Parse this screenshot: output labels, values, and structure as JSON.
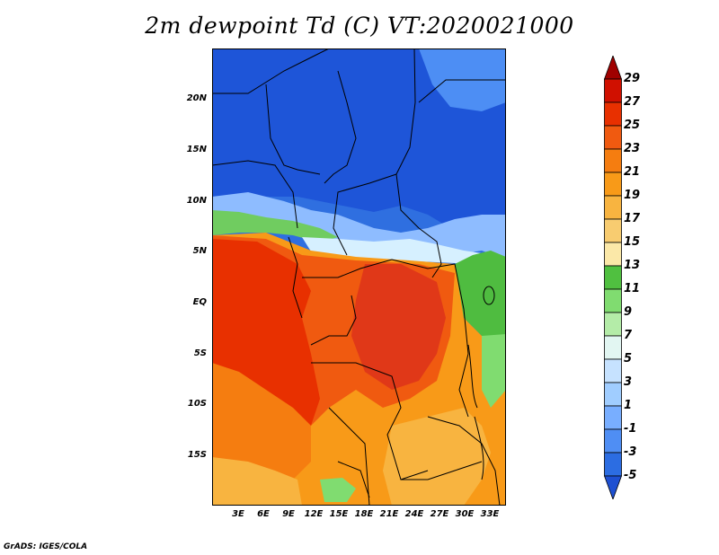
{
  "title": "2m dewpoint Td (C) VT:2020021000",
  "credit": "GrADS: IGES/COLA",
  "y_axis_labels": [
    "20N",
    "15N",
    "10N",
    "5N",
    "EQ",
    "5S",
    "10S",
    "15S"
  ],
  "y_axis_values": [
    20,
    15,
    10,
    5,
    0,
    -5,
    -10,
    -15
  ],
  "x_axis_labels": [
    "3E",
    "6E",
    "9E",
    "12E",
    "15E",
    "18E",
    "21E",
    "24E",
    "27E",
    "30E",
    "33E"
  ],
  "x_axis_values": [
    3,
    6,
    9,
    12,
    15,
    18,
    21,
    24,
    27,
    30,
    33
  ],
  "map_extent": {
    "lon_min": 0,
    "lon_max": 35,
    "lat_min": -20,
    "lat_max": 25
  },
  "colorbar": {
    "labels": [
      "29",
      "27",
      "25",
      "23",
      "21",
      "19",
      "17",
      "15",
      "13",
      "11",
      "9",
      "7",
      "5",
      "3",
      "1",
      "-1",
      "-3",
      "-5"
    ],
    "colors": [
      "#a00000",
      "#d01000",
      "#e83000",
      "#f05a10",
      "#f57d10",
      "#f89a18",
      "#f8b440",
      "#f8cc70",
      "#fbe8a8",
      "#50c040",
      "#80dc70",
      "#b4eca8",
      "#e2f6f2",
      "#c6e2ff",
      "#a0cdff",
      "#78aeff",
      "#4f8ef4",
      "#2c6de2",
      "#1e50d2"
    ]
  }
}
